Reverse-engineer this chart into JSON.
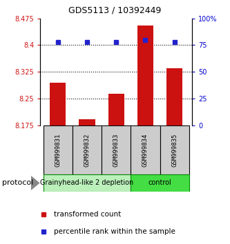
{
  "title": "GDS5113 / 10392449",
  "samples": [
    "GSM999831",
    "GSM999832",
    "GSM999833",
    "GSM999834",
    "GSM999835"
  ],
  "red_values": [
    8.295,
    8.193,
    8.265,
    8.455,
    8.335
  ],
  "blue_values": [
    78,
    78,
    78,
    80,
    78
  ],
  "ylim_left": [
    8.175,
    8.475
  ],
  "ylim_right": [
    0,
    100
  ],
  "yticks_left": [
    8.175,
    8.25,
    8.325,
    8.4,
    8.475
  ],
  "ytick_labels_left": [
    "8.175",
    "8.25",
    "8.325",
    "8.4",
    "8.475"
  ],
  "yticks_right": [
    0,
    25,
    50,
    75,
    100
  ],
  "ytick_labels_right": [
    "0",
    "25",
    "50",
    "75",
    "100%"
  ],
  "hlines": [
    8.25,
    8.325,
    8.4
  ],
  "groups": [
    {
      "label": "Grainyhead-like 2 depletion",
      "samples": [
        0,
        1,
        2
      ],
      "color": "#bbf0bb"
    },
    {
      "label": "control",
      "samples": [
        3,
        4
      ],
      "color": "#44dd44"
    }
  ],
  "protocol_label": "protocol",
  "bar_color": "#cc1111",
  "dot_color": "#2222cc",
  "bar_bottom": 8.175,
  "bg_color": "#ffffff",
  "plot_bg": "#ffffff",
  "legend_red": "transformed count",
  "legend_blue": "percentile rank within the sample",
  "sample_bg": "#cccccc",
  "title_fontsize": 9,
  "tick_fontsize": 7,
  "sample_fontsize": 6.5,
  "group_fontsize": 7,
  "legend_fontsize": 7.5
}
